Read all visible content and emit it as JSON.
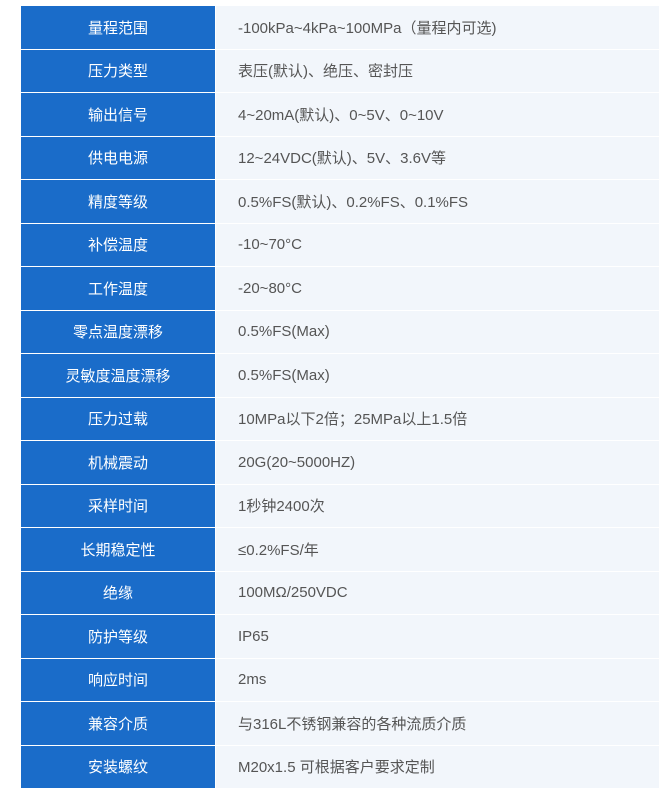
{
  "table": {
    "type": "table",
    "label_bg_color": "#1a6cc9",
    "label_text_color": "#ffffff",
    "value_bg_color": "#f2f6fb",
    "value_text_color": "#555555",
    "border_color": "#ffffff",
    "font_size": 15,
    "row_height": 43.5,
    "label_col_width": 195,
    "total_width": 640,
    "rows": [
      {
        "label": "量程范围",
        "value": "-100kPa~4kPa~100MPa（量程内可选)"
      },
      {
        "label": "压力类型",
        "value": "表压(默认)、绝压、密封压"
      },
      {
        "label": "输出信号",
        "value": "4~20mA(默认)、0~5V、0~10V"
      },
      {
        "label": "供电电源",
        "value": "12~24VDC(默认)、5V、3.6V等"
      },
      {
        "label": "精度等级",
        "value": "0.5%FS(默认)、0.2%FS、0.1%FS"
      },
      {
        "label": "补偿温度",
        "value": "-10~70°C"
      },
      {
        "label": "工作温度",
        "value": "-20~80°C"
      },
      {
        "label": "零点温度漂移",
        "value": "0.5%FS(Max)"
      },
      {
        "label": "灵敏度温度漂移",
        "value": "0.5%FS(Max)"
      },
      {
        "label": "压力过载",
        "value": "10MPa以下2倍；25MPa以上1.5倍"
      },
      {
        "label": "机械震动",
        "value": "20G(20~5000HZ)"
      },
      {
        "label": "采样时间",
        "value": "1秒钟2400次"
      },
      {
        "label": "长期稳定性",
        "value": "≤0.2%FS/年"
      },
      {
        "label": "绝缘",
        "value": "100MΩ/250VDC"
      },
      {
        "label": "防护等级",
        "value": "IP65"
      },
      {
        "label": "响应时间",
        "value": "2ms"
      },
      {
        "label": "兼容介质",
        "value": "与316L不锈钢兼容的各种流质介质"
      },
      {
        "label": "安装螺纹",
        "value": "M20x1.5  可根据客户要求定制"
      }
    ]
  }
}
